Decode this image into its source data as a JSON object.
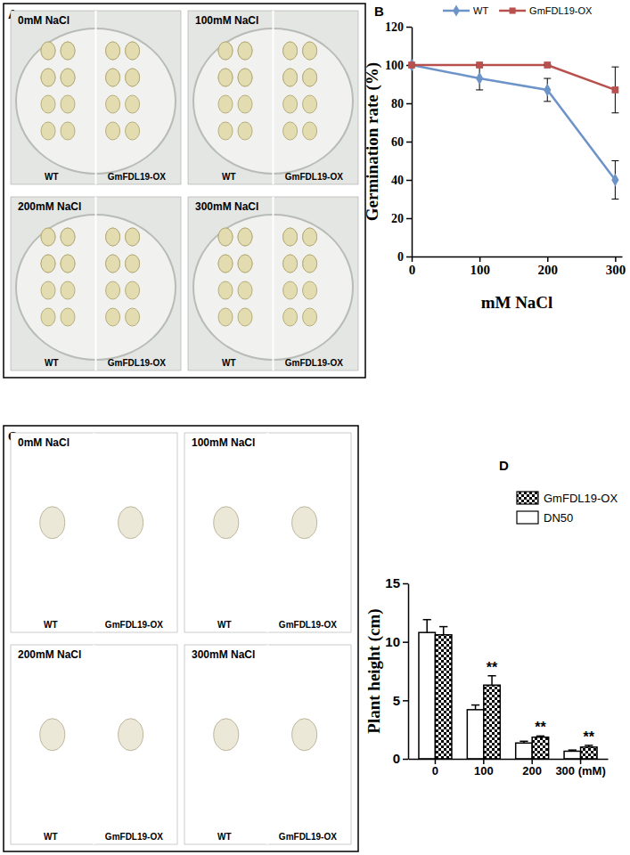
{
  "chart_data": [
    {
      "type": "line",
      "title": "B",
      "x_label": "mM NaCl",
      "y_label": "Germination rate (%)",
      "x": [
        0,
        100,
        200,
        300
      ],
      "xlim": [
        0,
        310
      ],
      "xticks": [
        0,
        100,
        200,
        300
      ],
      "ylim": [
        0,
        120
      ],
      "yticks": [
        0,
        20,
        40,
        60,
        80,
        100,
        120
      ],
      "legend": "top",
      "series": [
        {
          "name": "WT",
          "color": "#6d94c8",
          "marker": "diamond",
          "values": [
            100,
            93,
            87,
            40
          ],
          "errors": [
            0,
            6,
            6,
            10
          ]
        },
        {
          "name": "GmFDL19-OX",
          "color": "#b8504d",
          "marker": "square",
          "values": [
            100,
            100,
            100,
            87
          ],
          "errors": [
            0,
            0,
            0,
            12
          ]
        }
      ]
    },
    {
      "type": "bar",
      "title": "D",
      "y_label": "Plant height (cm)",
      "categories": [
        "0",
        "100",
        "200",
        "300 (mM)"
      ],
      "ylim": [
        0,
        15
      ],
      "yticks": [
        0,
        5,
        10,
        15
      ],
      "legend": "upper right",
      "series": [
        {
          "name": "DN50",
          "color": "#ffffff",
          "values": [
            10.8,
            4.2,
            1.35,
            0.65
          ],
          "errors": [
            1.1,
            0.4,
            0.15,
            0.1
          ]
        },
        {
          "name": "GmFDL19-OX",
          "color": "#000000",
          "values": [
            10.6,
            6.3,
            1.85,
            1.0
          ],
          "errors": [
            0.7,
            0.8,
            0.1,
            0.15
          ]
        }
      ],
      "annotations": [
        null,
        "**",
        "**",
        "**"
      ]
    }
  ],
  "photo_panels": [
    {
      "label": "A",
      "images": [
        {
          "title": "0mM NaCl",
          "labels": [
            "WT",
            "GmFDL19-OX"
          ]
        },
        {
          "title": "100mM NaCl",
          "labels": [
            "WT",
            "GmFDL19-OX"
          ]
        },
        {
          "title": "200mM NaCl",
          "labels": [
            "WT",
            "GmFDL19-OX"
          ]
        },
        {
          "title": "300mM NaCl",
          "labels": [
            "WT",
            "GmFDL19-OX"
          ]
        }
      ]
    },
    {
      "label": "C",
      "images": [
        {
          "title": "0mM NaCl",
          "labels": [
            "WT",
            "GmFDL19-OX"
          ]
        },
        {
          "title": "100mM NaCl",
          "labels": [
            "WT",
            "GmFDL19-OX"
          ]
        },
        {
          "title": "200mM NaCl",
          "labels": [
            "WT",
            "GmFDL19-OX"
          ]
        },
        {
          "title": "300mM NaCl",
          "labels": [
            "WT",
            "GmFDL19-OX"
          ]
        }
      ]
    }
  ]
}
